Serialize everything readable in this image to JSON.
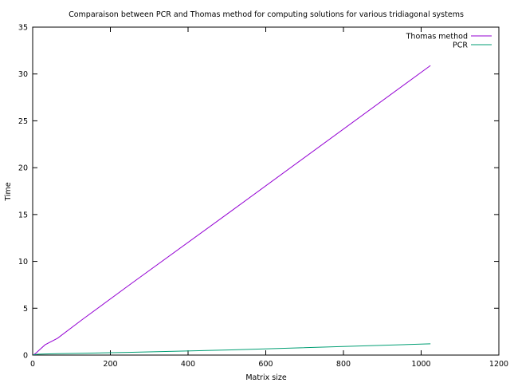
{
  "chart_data": {
    "type": "line",
    "title": "Comparaison between PCR and Thomas method for computing solutions for various tridiagonal systems",
    "xlabel": "Matrix size",
    "ylabel": "Time",
    "xlim": [
      0,
      1200
    ],
    "ylim": [
      0,
      35
    ],
    "xticks": [
      "0",
      "200",
      "400",
      "600",
      "800",
      "1000",
      "1200"
    ],
    "yticks": [
      "0",
      "5",
      "10",
      "15",
      "20",
      "25",
      "30",
      "35"
    ],
    "grid": false,
    "legend_position": "top-right",
    "series": [
      {
        "name": "Thomas method",
        "color": "#9400d3",
        "x": [
          2,
          4,
          8,
          16,
          32,
          64,
          128,
          256,
          512,
          1024
        ],
        "y": [
          0.03,
          0.08,
          0.2,
          0.5,
          1.1,
          1.8,
          3.8,
          7.7,
          15.4,
          30.9
        ]
      },
      {
        "name": "PCR",
        "color": "#009e73",
        "x": [
          2,
          4,
          8,
          16,
          32,
          64,
          128,
          256,
          512,
          1024
        ],
        "y": [
          0.02,
          0.04,
          0.07,
          0.09,
          0.12,
          0.15,
          0.2,
          0.3,
          0.55,
          1.2
        ]
      }
    ]
  }
}
